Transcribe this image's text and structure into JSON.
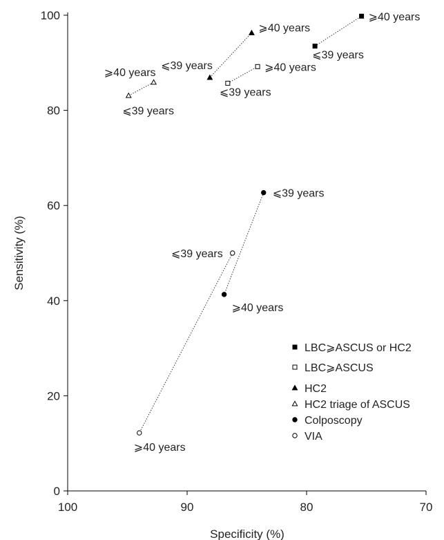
{
  "chart_data": {
    "type": "scatter",
    "title": "",
    "xlabel": "Specificity (%)",
    "ylabel": "Sensitivity (%)",
    "x_reversed": true,
    "xlim": [
      100,
      70
    ],
    "ylim": [
      0,
      100
    ],
    "xticks": [
      100,
      90,
      80,
      70
    ],
    "yticks": [
      0,
      20,
      40,
      60,
      80,
      100
    ],
    "grid": false,
    "legend_position": "bottom-right",
    "series": [
      {
        "name": "LBC⩾ASCUS or HC2",
        "marker": "filled-square",
        "connector": "dotted",
        "points": [
          {
            "x": 79.3,
            "y": 93.5,
            "label": "⩽39 years"
          },
          {
            "x": 75.4,
            "y": 99.8,
            "label": "⩾40 years"
          }
        ]
      },
      {
        "name": "LBC⩾ASCUS",
        "marker": "open-square",
        "connector": "dotted",
        "points": [
          {
            "x": 86.6,
            "y": 85.7,
            "label": "⩽39 years"
          },
          {
            "x": 84.1,
            "y": 89.2,
            "label": "⩾40 years"
          }
        ]
      },
      {
        "name": "HC2",
        "marker": "filled-triangle",
        "connector": "dotted",
        "points": [
          {
            "x": 88.1,
            "y": 86.9,
            "label": "⩽39 years"
          },
          {
            "x": 84.6,
            "y": 96.3,
            "label": "⩾40 years"
          }
        ]
      },
      {
        "name": "HC2 triage of ASCUS",
        "marker": "open-triangle",
        "connector": "dotted",
        "points": [
          {
            "x": 94.9,
            "y": 83.1,
            "label": "⩽39 years"
          },
          {
            "x": 92.8,
            "y": 85.9,
            "label": "⩾40 years"
          }
        ]
      },
      {
        "name": "Colposcopy",
        "marker": "filled-circle",
        "connector": "dotted",
        "points": [
          {
            "x": 83.6,
            "y": 62.7,
            "label": "⩽39 years"
          },
          {
            "x": 86.9,
            "y": 41.3,
            "label": "⩾40 years"
          }
        ]
      },
      {
        "name": "VIA",
        "marker": "open-circle",
        "connector": "dotted",
        "points": [
          {
            "x": 86.2,
            "y": 50.0,
            "label": "⩽39 years"
          },
          {
            "x": 94.0,
            "y": 12.2,
            "label": "⩾40 years"
          }
        ]
      }
    ]
  }
}
